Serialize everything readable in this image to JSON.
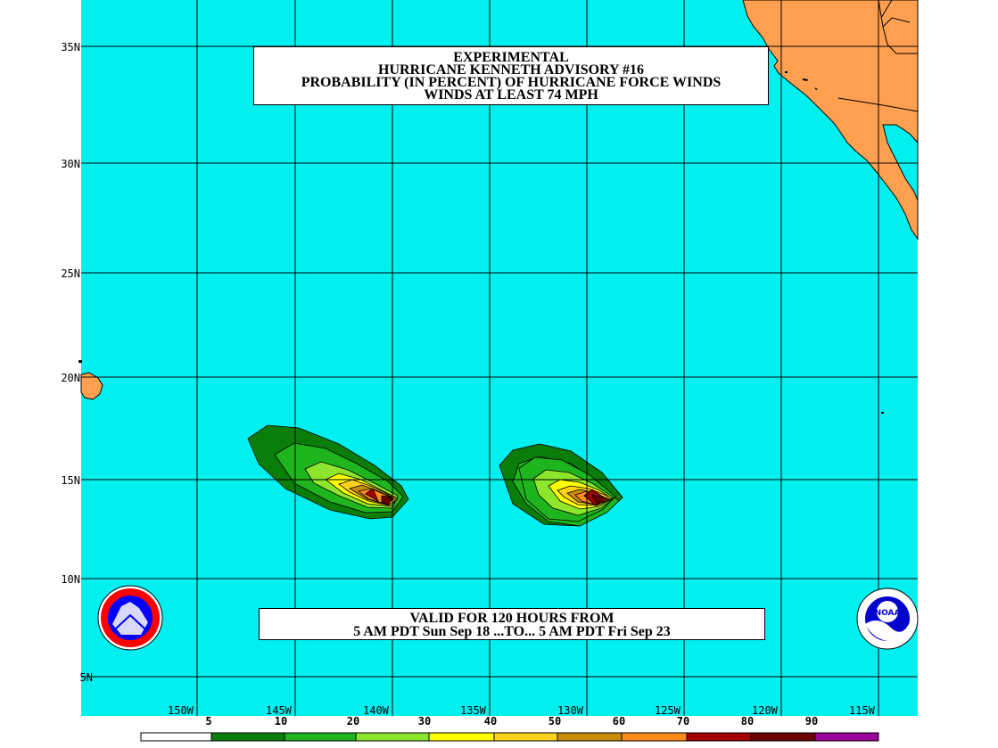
{
  "title": {
    "line1": "EXPERIMENTAL",
    "line2": "HURRICANE KENNETH ADVISORY #16",
    "line3": "PROBABILITY (IN PERCENT) OF HURRICANE FORCE WINDS",
    "line4": "WINDS AT LEAST 74 MPH"
  },
  "validity": {
    "line1": "VALID FOR 120 HOURS FROM",
    "line2": "5 AM PDT Sun Sep 18 ...TO... 5 AM PDT Fri Sep 23"
  },
  "latitude_labels": [
    "35N",
    "30N",
    "25N",
    "20N",
    "15N",
    "10N",
    "5N"
  ],
  "longitude_labels": [
    "150W",
    "145W",
    "140W",
    "135W",
    "130W",
    "125W",
    "120W",
    "115W"
  ],
  "legend": {
    "labels": [
      "5",
      "10",
      "20",
      "30",
      "40",
      "50",
      "60",
      "70",
      "80",
      "90"
    ],
    "colors": [
      "#ffffff",
      "#0a7d0a",
      "#1fb51f",
      "#8ee62c",
      "#ffff00",
      "#ffd21a",
      "#c98c0a",
      "#ff8c1a",
      "#a00000",
      "#6b0000",
      "#990099"
    ]
  },
  "colors": {
    "ocean": "#00f0f0",
    "land": "#ffa050",
    "grid": "#000000"
  },
  "logos": {
    "left": "national-weather-service-logo",
    "right": "noaa-logo",
    "right_text": "NOAA"
  }
}
